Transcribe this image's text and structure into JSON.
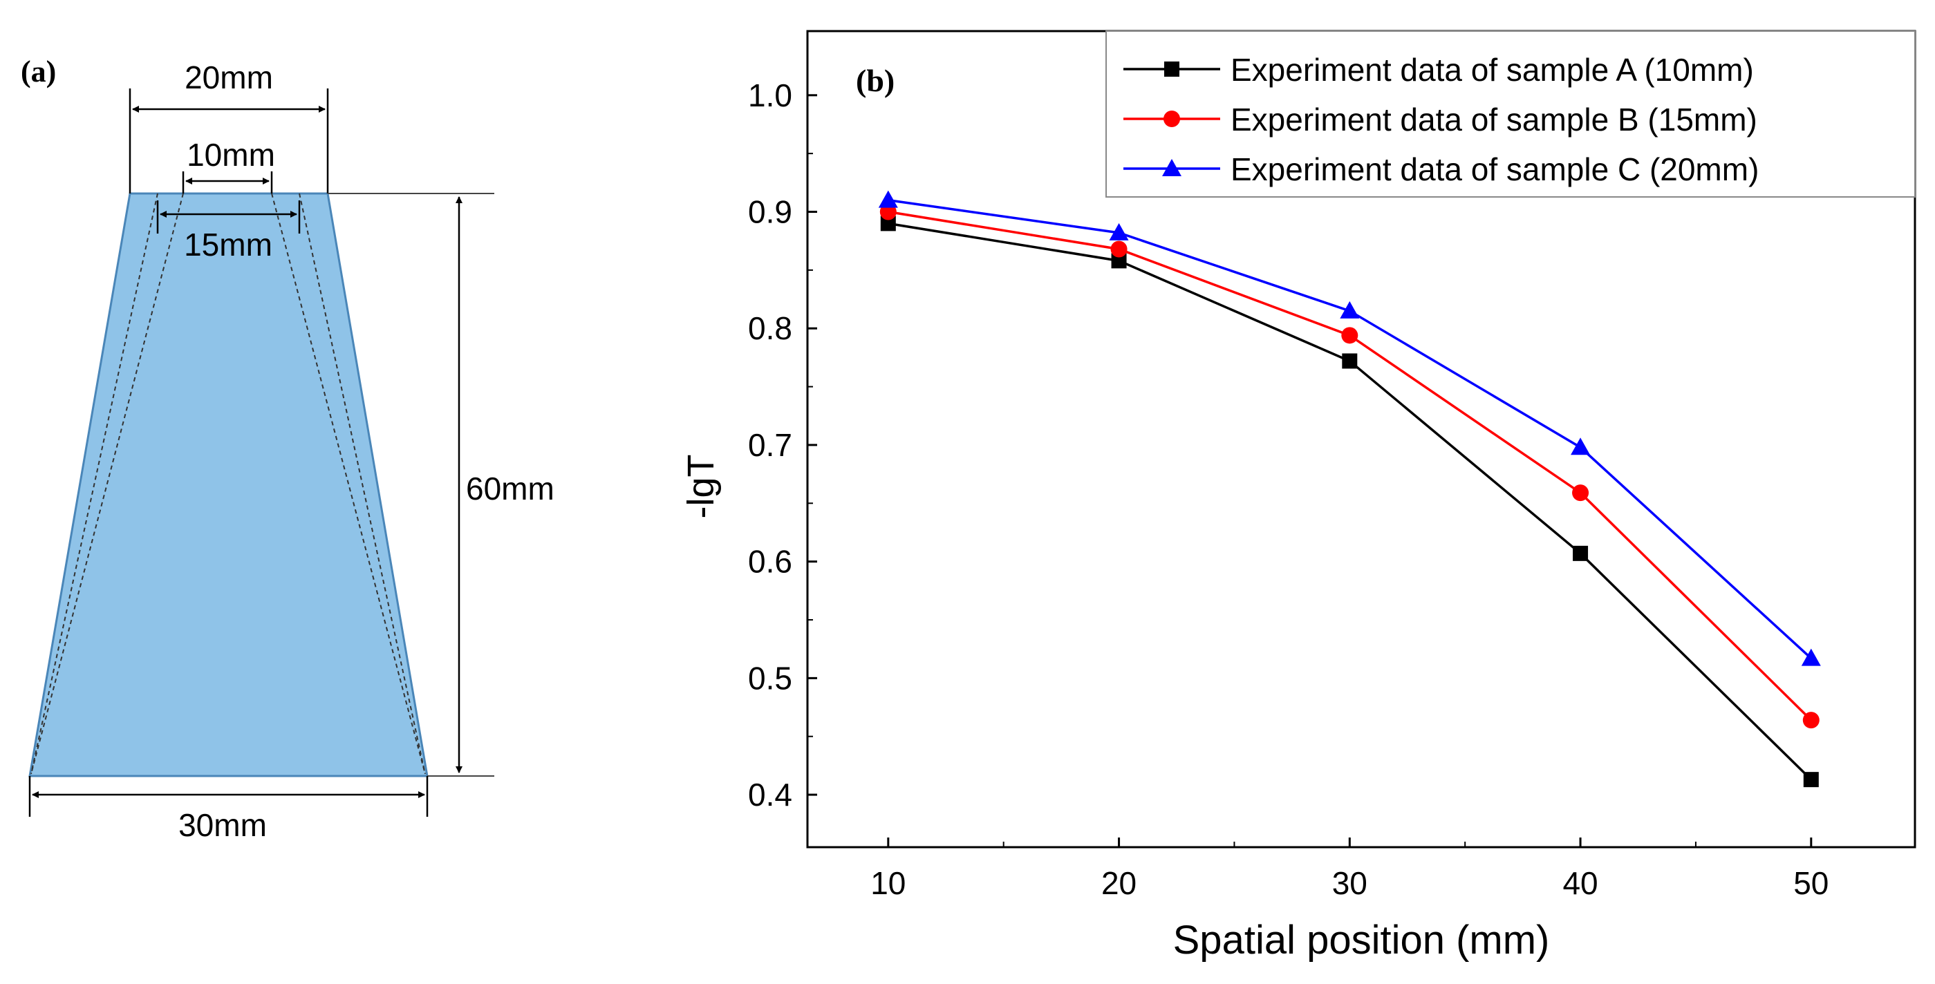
{
  "diagram": {
    "panel_label": "(a)",
    "dims": {
      "top_outer": "20mm",
      "top_inner": "10mm",
      "top_middle": "15mm",
      "height": "60mm",
      "bottom": "30mm"
    },
    "colors": {
      "fill": "#8FC3E8",
      "edge": "#4A86B8",
      "line": "#000000"
    }
  },
  "chart_panel_label": "(b)",
  "chart_data": {
    "type": "line",
    "title": "",
    "xlabel": "Spatial position (mm)",
    "ylabel": "-lgT",
    "x": [
      10,
      20,
      30,
      40,
      50
    ],
    "xlim": [
      6.5,
      54.5
    ],
    "ylim": [
      0.355,
      1.055
    ],
    "xticks": [
      10,
      20,
      30,
      40,
      50
    ],
    "yticks": [
      0.4,
      0.5,
      0.6,
      0.7,
      0.8,
      0.9,
      1.0
    ],
    "ytick_labels": [
      "0.4",
      "0.5",
      "0.6",
      "0.7",
      "0.8",
      "0.9",
      "1.0"
    ],
    "legend_position": "top-right",
    "grid": false,
    "series": [
      {
        "name": "Experiment data of sample A (10mm)",
        "color": "#000000",
        "marker": "square",
        "values": [
          0.89,
          0.858,
          0.772,
          0.607,
          0.413
        ]
      },
      {
        "name": "Experiment data of sample B (15mm)",
        "color": "#FF0000",
        "marker": "circle",
        "values": [
          0.9,
          0.868,
          0.794,
          0.659,
          0.464
        ]
      },
      {
        "name": "Experiment data of sample C (20mm)",
        "color": "#0000FF",
        "marker": "triangle",
        "values": [
          0.91,
          0.882,
          0.815,
          0.698,
          0.517
        ]
      }
    ]
  }
}
